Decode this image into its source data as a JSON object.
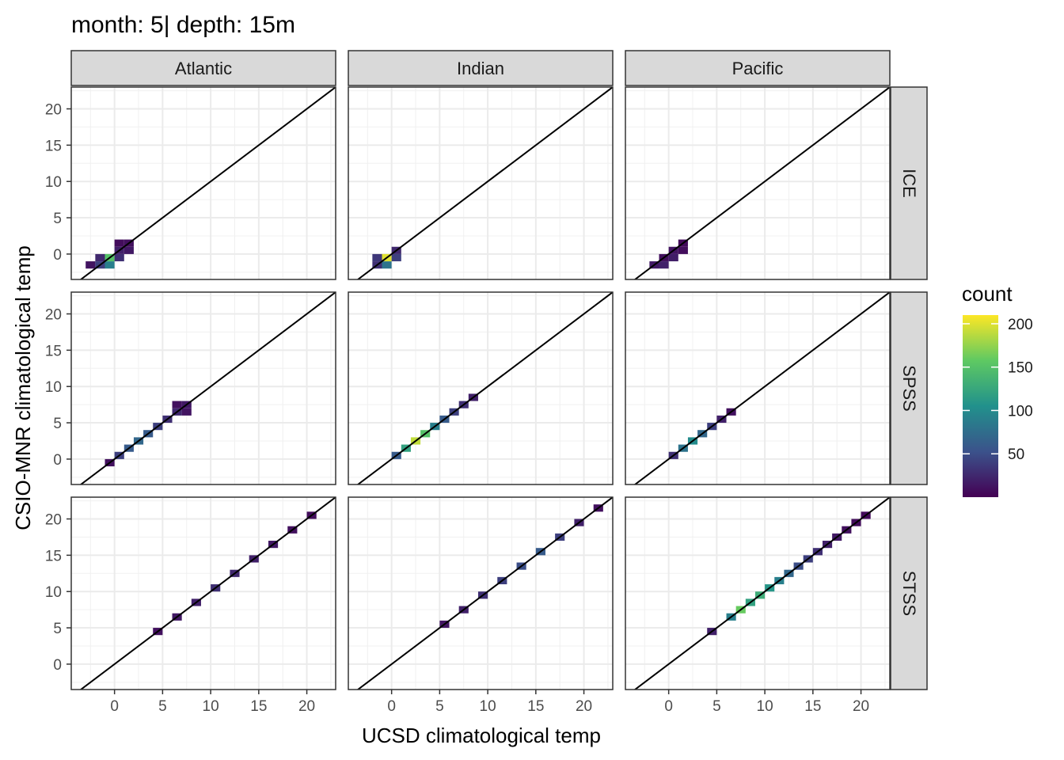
{
  "chart_data": {
    "type": "heatmap",
    "title": "month: 5| depth: 15m",
    "xlabel": "UCSD climatological temp",
    "ylabel": "CSIO-MNR climatological temp",
    "x_ticks": [
      0,
      5,
      10,
      15,
      20
    ],
    "y_ticks": [
      0,
      5,
      10,
      15,
      20
    ],
    "xlim": [
      -4.5,
      23
    ],
    "ylim": [
      -3.5,
      23
    ],
    "grid": true,
    "reference_line": "y = x",
    "col_facets": [
      "Atlantic",
      "Indian",
      "Pacific"
    ],
    "row_facets": [
      "ICE",
      "SPSS",
      "STSS"
    ],
    "legend": {
      "title": "count",
      "position": "right",
      "ticks": [
        50,
        100,
        150,
        200
      ],
      "max": 210,
      "colormap": "viridis"
    },
    "panels": [
      {
        "row": "ICE",
        "col": "Atlantic",
        "bins": [
          [
            -3,
            -2,
            12
          ],
          [
            -2,
            -2,
            40
          ],
          [
            -1,
            -2,
            90
          ],
          [
            -1,
            -1,
            150
          ],
          [
            0,
            -1,
            30
          ],
          [
            0,
            0,
            20
          ],
          [
            1,
            0,
            15
          ],
          [
            0,
            1,
            8
          ],
          [
            1,
            1,
            10
          ],
          [
            -2,
            -1,
            25
          ]
        ]
      },
      {
        "row": "ICE",
        "col": "Indian",
        "bins": [
          [
            -2,
            -2,
            30
          ],
          [
            -1,
            -2,
            80
          ],
          [
            -1,
            -1,
            200
          ],
          [
            0,
            -1,
            40
          ],
          [
            0,
            0,
            25
          ],
          [
            -2,
            -1,
            35
          ]
        ]
      },
      {
        "row": "ICE",
        "col": "Pacific",
        "bins": [
          [
            -2,
            -2,
            15
          ],
          [
            -1,
            -2,
            20
          ],
          [
            -1,
            -1,
            10
          ],
          [
            0,
            -1,
            18
          ],
          [
            0,
            0,
            12
          ],
          [
            1,
            0,
            8
          ],
          [
            1,
            1,
            6
          ]
        ]
      },
      {
        "row": "SPSS",
        "col": "Atlantic",
        "bins": [
          [
            -1,
            -1,
            10
          ],
          [
            0,
            0,
            40
          ],
          [
            1,
            1,
            60
          ],
          [
            2,
            2,
            70
          ],
          [
            3,
            3,
            60
          ],
          [
            4,
            4,
            40
          ],
          [
            5,
            5,
            30
          ],
          [
            6,
            6,
            25
          ],
          [
            7,
            7,
            15
          ],
          [
            6,
            7,
            10
          ],
          [
            7,
            6,
            12
          ]
        ]
      },
      {
        "row": "SPSS",
        "col": "Indian",
        "bins": [
          [
            0,
            0,
            60
          ],
          [
            1,
            1,
            120
          ],
          [
            2,
            2,
            190
          ],
          [
            3,
            3,
            150
          ],
          [
            4,
            4,
            90
          ],
          [
            5,
            5,
            60
          ],
          [
            6,
            6,
            40
          ],
          [
            7,
            7,
            30
          ],
          [
            8,
            8,
            20
          ]
        ]
      },
      {
        "row": "SPSS",
        "col": "Pacific",
        "bins": [
          [
            0,
            0,
            30
          ],
          [
            1,
            1,
            80
          ],
          [
            2,
            2,
            100
          ],
          [
            3,
            3,
            70
          ],
          [
            4,
            4,
            40
          ],
          [
            5,
            5,
            20
          ],
          [
            6,
            6,
            10
          ]
        ]
      },
      {
        "row": "STSS",
        "col": "Atlantic",
        "bins": [
          [
            4,
            4,
            10
          ],
          [
            6,
            6,
            15
          ],
          [
            8,
            8,
            20
          ],
          [
            10,
            10,
            30
          ],
          [
            12,
            12,
            25
          ],
          [
            14,
            14,
            20
          ],
          [
            16,
            16,
            15
          ],
          [
            18,
            18,
            10
          ],
          [
            20,
            20,
            8
          ]
        ]
      },
      {
        "row": "STSS",
        "col": "Indian",
        "bins": [
          [
            5,
            5,
            12
          ],
          [
            7,
            7,
            20
          ],
          [
            9,
            9,
            30
          ],
          [
            11,
            11,
            40
          ],
          [
            13,
            13,
            50
          ],
          [
            15,
            15,
            60
          ],
          [
            17,
            17,
            40
          ],
          [
            19,
            19,
            20
          ],
          [
            21,
            21,
            10
          ]
        ]
      },
      {
        "row": "STSS",
        "col": "Pacific",
        "bins": [
          [
            4,
            4,
            20
          ],
          [
            6,
            6,
            90
          ],
          [
            7,
            7,
            160
          ],
          [
            8,
            8,
            120
          ],
          [
            9,
            9,
            130
          ],
          [
            10,
            10,
            110
          ],
          [
            11,
            11,
            90
          ],
          [
            12,
            12,
            70
          ],
          [
            13,
            13,
            50
          ],
          [
            14,
            14,
            40
          ],
          [
            15,
            15,
            30
          ],
          [
            16,
            16,
            20
          ],
          [
            17,
            17,
            15
          ],
          [
            18,
            18,
            10
          ],
          [
            19,
            19,
            8
          ],
          [
            20,
            20,
            6
          ]
        ]
      }
    ]
  }
}
